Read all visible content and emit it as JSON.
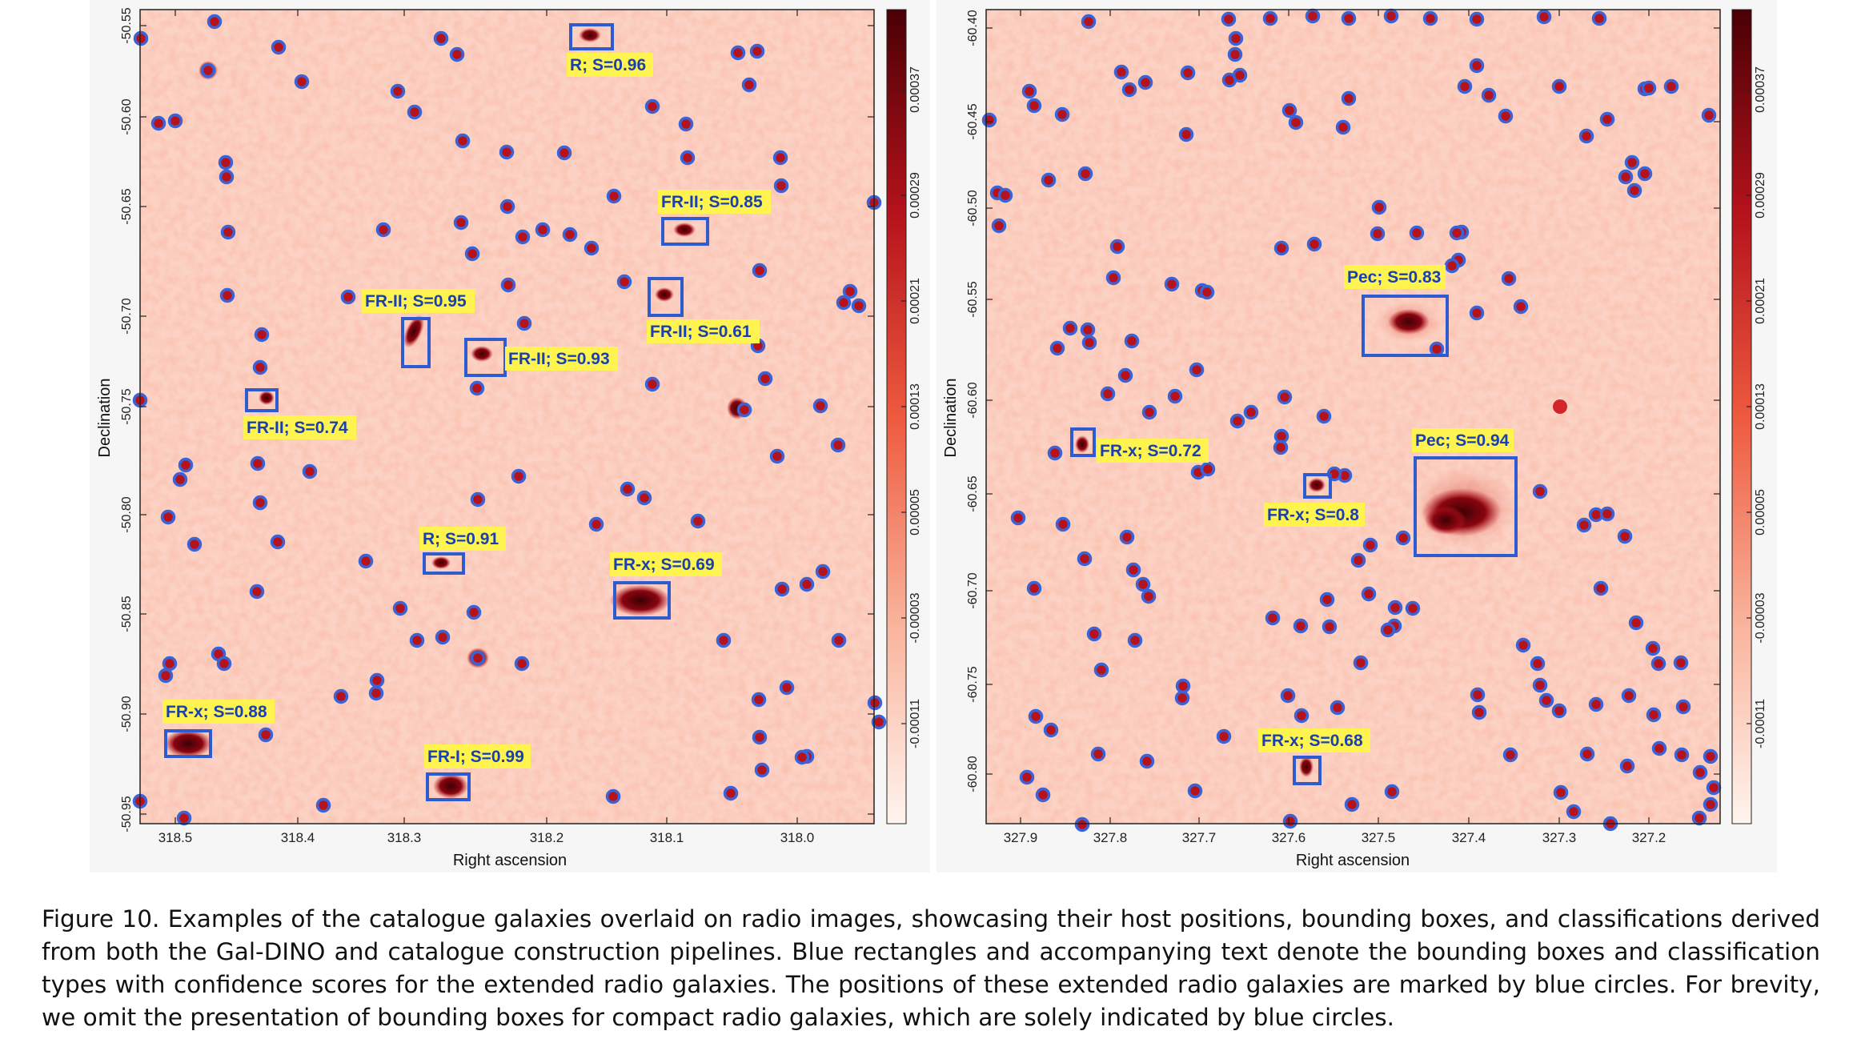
{
  "panels": [
    {
      "id": "left",
      "x_ticks": [
        "318.5",
        "318.4",
        "318.3",
        "318.2",
        "318.1",
        "318.0"
      ],
      "y_ticks": [
        "-50.55",
        "-50.60",
        "-50.65",
        "-50.70",
        "-50.75",
        "-50.80",
        "-50.85",
        "-50.90",
        "-50.95"
      ],
      "xlabel": "Right ascension",
      "ylabel": "Declination",
      "colorbar_ticks": [
        "0.00037",
        "0.00029",
        "0.00021",
        "0.00013",
        "0.00005",
        "-0.00003",
        "-0.00011"
      ],
      "detections": [
        {
          "label": "R; S=0.96"
        },
        {
          "label": "FR-II; S=0.85"
        },
        {
          "label": "FR-II; S=0.95"
        },
        {
          "label": "FR-II; S=0.61"
        },
        {
          "label": "FR-II; S=0.93"
        },
        {
          "label": "FR-II; S=0.74"
        },
        {
          "label": "R; S=0.91"
        },
        {
          "label": "FR-x; S=0.69"
        },
        {
          "label": "FR-x; S=0.88"
        },
        {
          "label": "FR-I; S=0.99"
        }
      ]
    },
    {
      "id": "right",
      "x_ticks": [
        "327.9",
        "327.8",
        "327.7",
        "327.6",
        "327.5",
        "327.4",
        "327.3",
        "327.2"
      ],
      "y_ticks": [
        "-60.40",
        "-60.45",
        "-60.50",
        "-60.55",
        "-60.60",
        "-60.65",
        "-60.70",
        "-60.75",
        "-60.80"
      ],
      "xlabel": "Right ascension",
      "ylabel": "Declination",
      "colorbar_ticks": [
        "0.00037",
        "0.00029",
        "0.00021",
        "0.00013",
        "0.00005",
        "-0.00003",
        "-0.00011"
      ],
      "detections": [
        {
          "label": "Pec; S=0.83"
        },
        {
          "label": "Pec; S=0.94"
        },
        {
          "label": "FR-x; S=0.72"
        },
        {
          "label": "FR-x; S=0.8"
        },
        {
          "label": "FR-x; S=0.68"
        }
      ]
    }
  ],
  "caption": "Figure 10. Examples of the catalogue galaxies overlaid on radio images, showcasing their host positions, bounding boxes, and classifications derived from both the Gal-DINO and catalogue construction pipelines. Blue rectangles and accompanying text denote the bounding boxes and classification types with confidence scores for the extended radio galaxies. The positions of these extended radio galaxies are marked by blue circles. For brevity, we omit the presentation of bounding boxes for compact radio galaxies, which are solely indicated by blue circles.",
  "colors": {
    "box": "#2e5bd0",
    "label_bg": "#fff44f",
    "label_text": "#1a3fb0",
    "source_dark": "#6b0008",
    "background_noise": "#fbd5c8"
  }
}
